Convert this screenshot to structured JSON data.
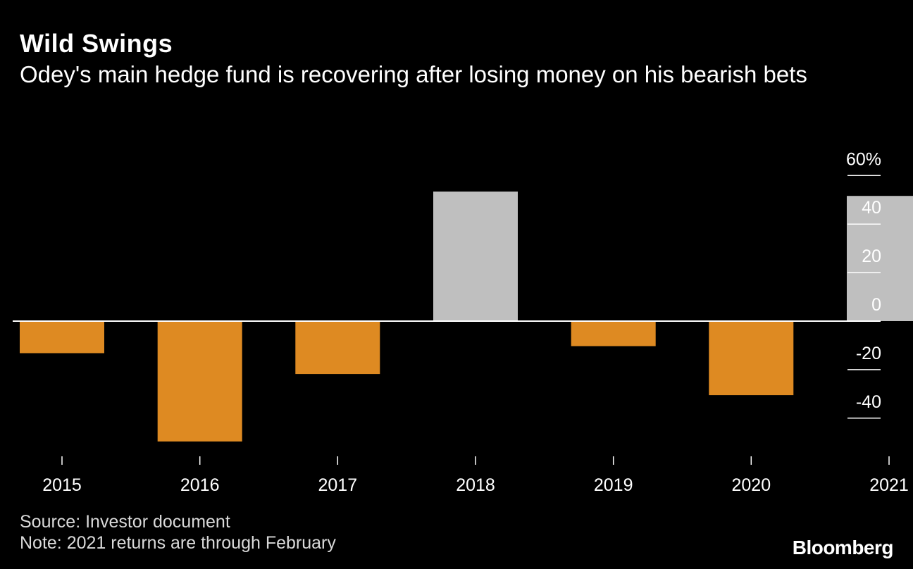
{
  "title": "Wild Swings",
  "subtitle": "Odey's main hedge fund is recovering after losing money on his bearish bets",
  "source": "Source: Investor document",
  "note": "Note: 2021 returns are through February",
  "brand": "Bloomberg",
  "colors": {
    "background": "#000000",
    "negative": "#de8a22",
    "positive": "#bfbfbf",
    "zero_line": "#ffffff",
    "text": "#ffffff",
    "muted_text": "#d9d9d9"
  },
  "chart_data": {
    "type": "bar",
    "title": "Wild Swings",
    "subtitle": "Odey's main hedge fund is recovering after losing money on his bearish bets",
    "categories": [
      "2015",
      "2016",
      "2017",
      "2018",
      "2019",
      "2020",
      "2021"
    ],
    "values": [
      -13.2,
      -49.6,
      -21.8,
      53.4,
      -10.3,
      -30.5,
      51.6
    ],
    "xlabel": "",
    "ylabel": "",
    "ylim": [
      -56,
      60
    ],
    "y_ticks": [
      60,
      40,
      20,
      0,
      -20,
      -40
    ],
    "y_tick_labels": [
      "60%",
      "40",
      "20",
      "0",
      "-20",
      "-40"
    ],
    "axis_position": "right",
    "grid": false,
    "legend": null
  }
}
